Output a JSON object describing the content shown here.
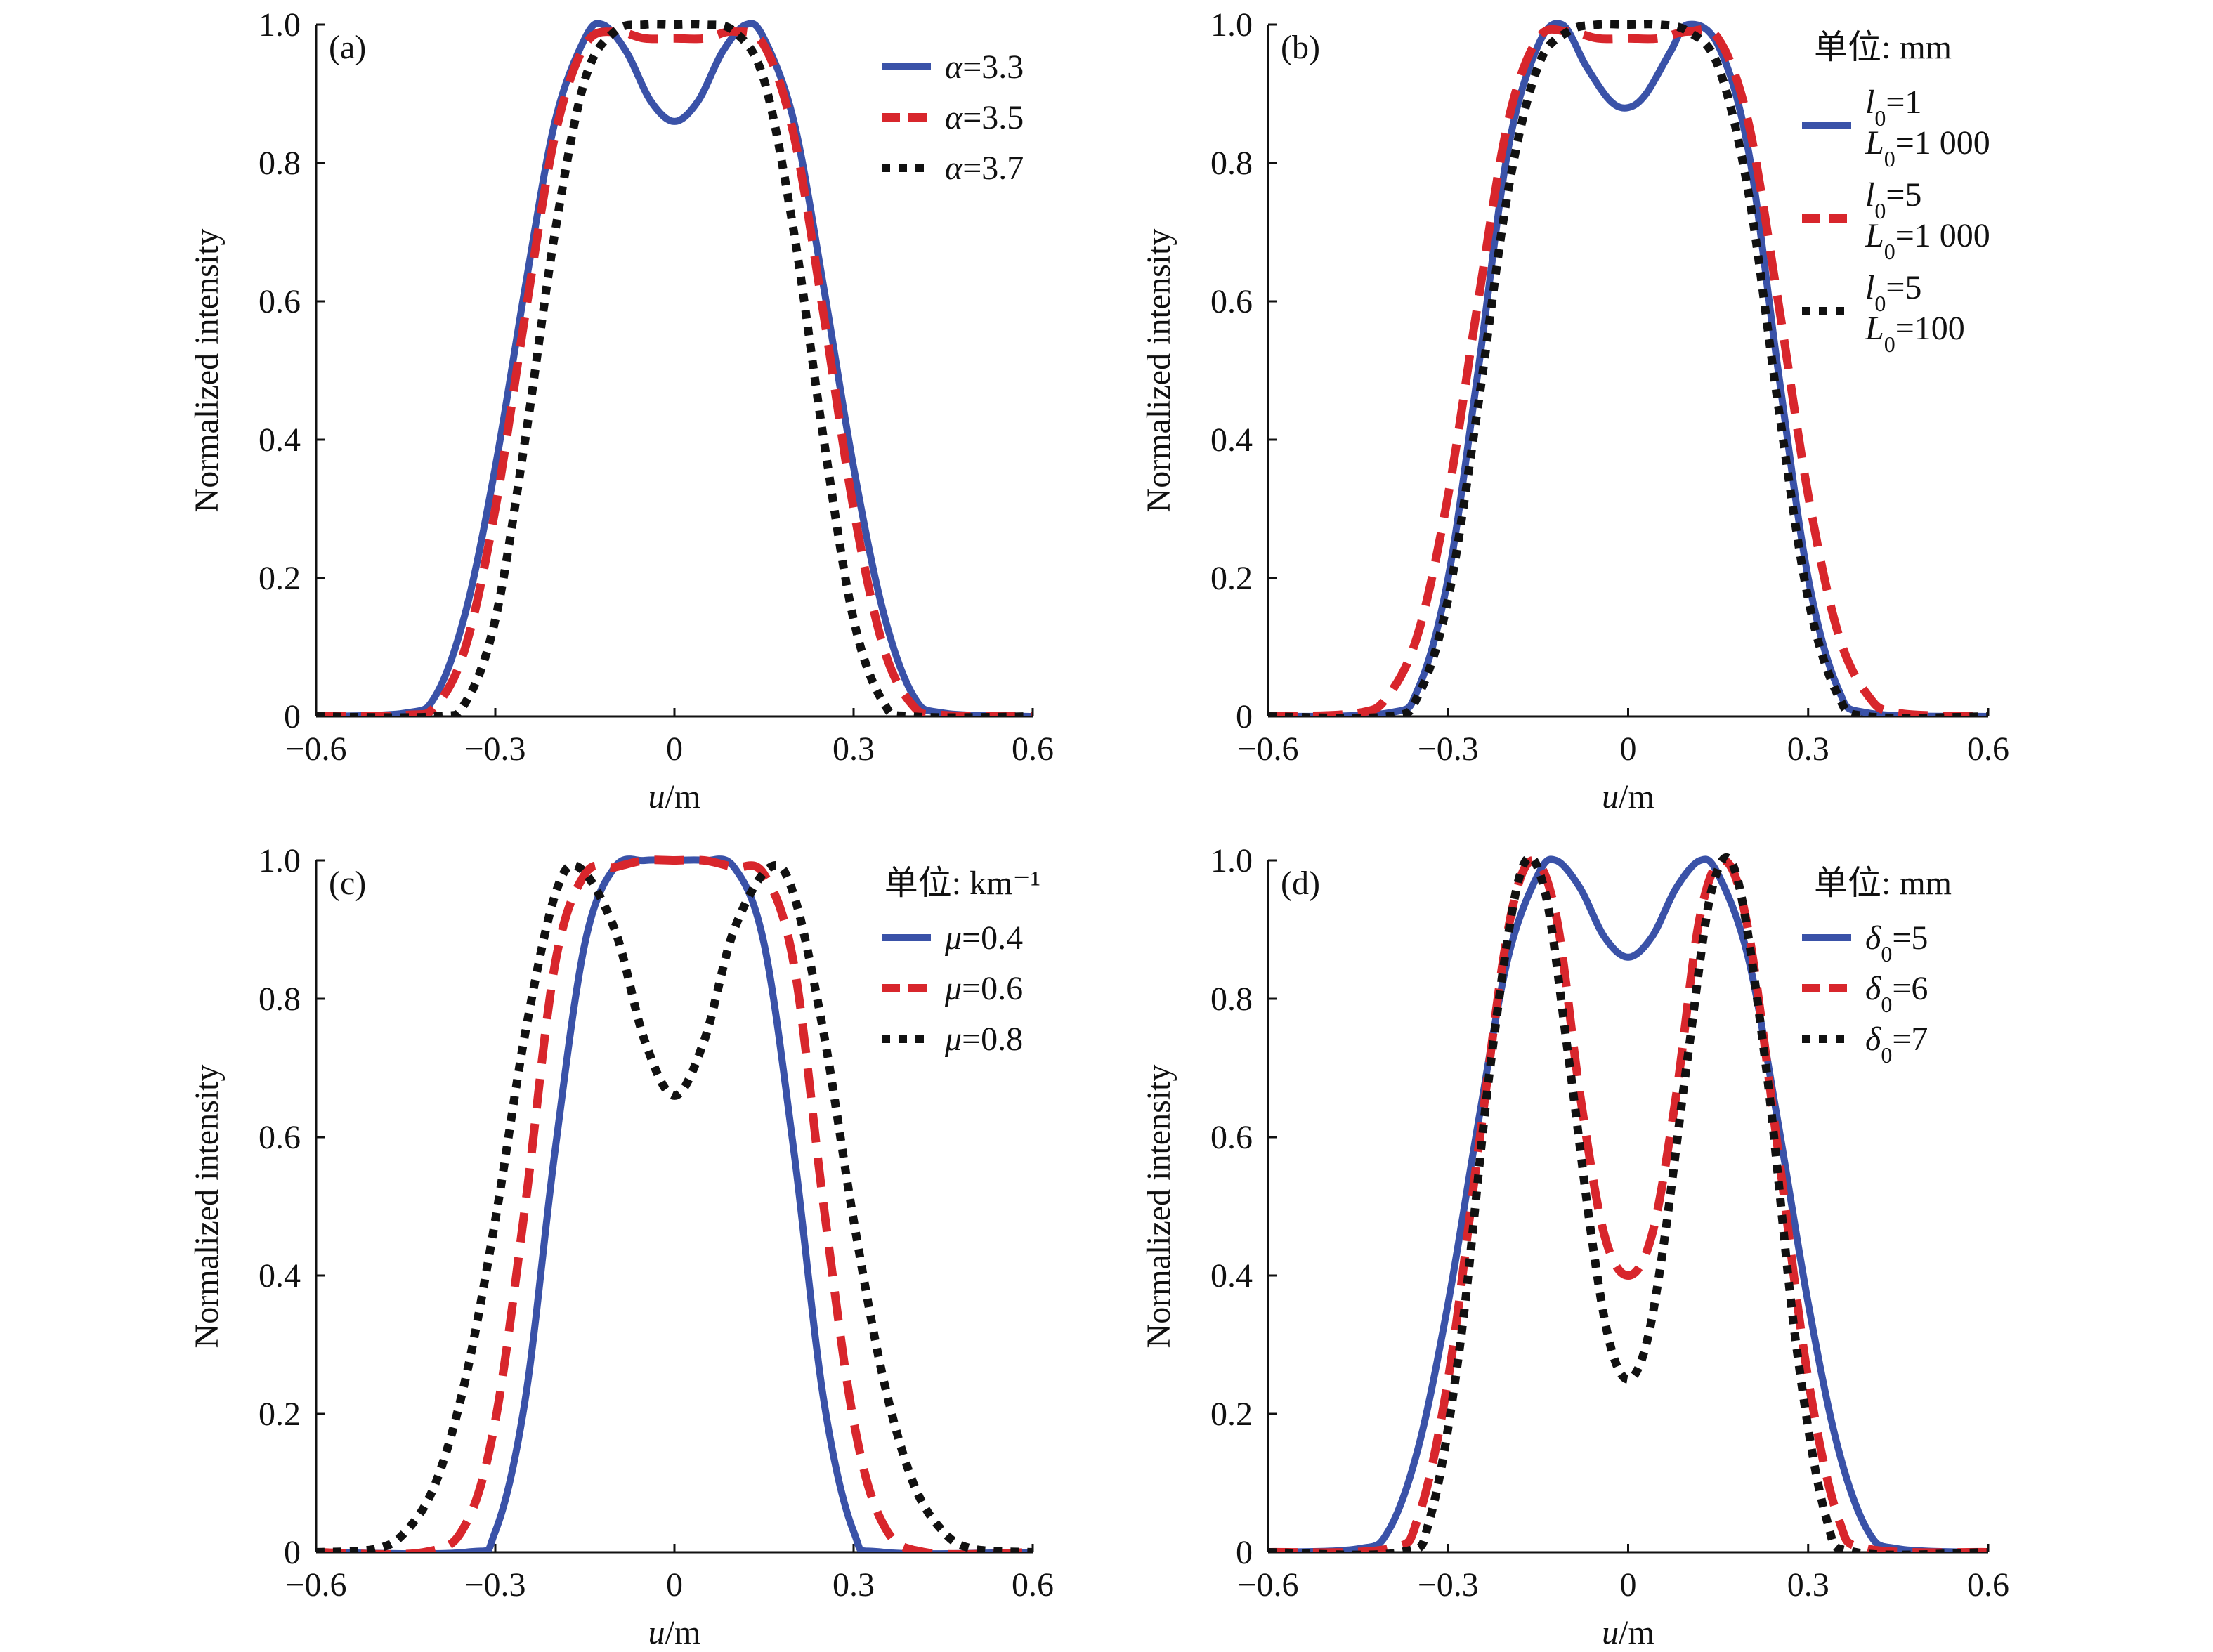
{
  "figure": {
    "x_unit_label": "u/m",
    "y_label": "Normalized intensity"
  },
  "chart_data": [
    {
      "type": "line",
      "panel_label": "(a)",
      "xlabel": "u/m",
      "ylabel": "Normalized intensity",
      "xlim": [
        -0.6,
        0.6
      ],
      "ylim": [
        0,
        1.0
      ],
      "xticks": [
        "−0.6",
        "−0.3",
        "0",
        "0.3",
        "0.6"
      ],
      "yticks": [
        "0",
        "0.2",
        "0.4",
        "0.6",
        "0.8",
        "1.0"
      ],
      "legend_title": "",
      "series": [
        {
          "name": "α=3.3",
          "legend_lines": [
            "α=3.3"
          ],
          "color": "#3a52a8",
          "style": "solid",
          "x": [
            -0.6,
            -0.45,
            -0.4,
            -0.35,
            -0.3,
            -0.25,
            -0.2,
            -0.15,
            -0.12,
            -0.08,
            -0.04,
            0,
            0.04,
            0.08,
            0.12,
            0.15,
            0.2,
            0.25,
            0.3,
            0.35,
            0.4,
            0.45,
            0.6
          ],
          "y": [
            0,
            0.005,
            0.03,
            0.15,
            0.36,
            0.62,
            0.86,
            0.98,
            1.0,
            0.96,
            0.89,
            0.86,
            0.89,
            0.96,
            1.0,
            0.98,
            0.86,
            0.62,
            0.36,
            0.15,
            0.03,
            0.005,
            0
          ]
        },
        {
          "name": "α=3.5",
          "legend_lines": [
            "α=3.5"
          ],
          "color": "#d8262c",
          "style": "dashed",
          "x": [
            -0.6,
            -0.45,
            -0.4,
            -0.35,
            -0.3,
            -0.25,
            -0.2,
            -0.15,
            -0.1,
            -0.05,
            0,
            0.05,
            0.1,
            0.15,
            0.2,
            0.25,
            0.3,
            0.35,
            0.4,
            0.45,
            0.6
          ],
          "y": [
            0,
            0.002,
            0.015,
            0.1,
            0.3,
            0.58,
            0.84,
            0.97,
            0.99,
            0.98,
            0.98,
            0.98,
            0.99,
            0.97,
            0.84,
            0.58,
            0.3,
            0.1,
            0.015,
            0.002,
            0
          ]
        },
        {
          "name": "α=3.7",
          "legend_lines": [
            "α=3.7"
          ],
          "color": "#111111",
          "style": "dotted",
          "x": [
            -0.6,
            -0.4,
            -0.35,
            -0.3,
            -0.25,
            -0.2,
            -0.15,
            -0.1,
            -0.05,
            0,
            0.05,
            0.1,
            0.15,
            0.2,
            0.25,
            0.3,
            0.35,
            0.4,
            0.6
          ],
          "y": [
            0,
            0,
            0.02,
            0.14,
            0.4,
            0.7,
            0.92,
            0.99,
            1.0,
            1.0,
            1.0,
            0.99,
            0.92,
            0.7,
            0.4,
            0.14,
            0.02,
            0,
            0
          ]
        }
      ]
    },
    {
      "type": "line",
      "panel_label": "(b)",
      "xlabel": "u/m",
      "ylabel": "Normalized intensity",
      "xlim": [
        -0.6,
        0.6
      ],
      "ylim": [
        0,
        1.0
      ],
      "xticks": [
        "−0.6",
        "−0.3",
        "0",
        "0.3",
        "0.6"
      ],
      "yticks": [
        "0",
        "0.2",
        "0.4",
        "0.6",
        "0.8",
        "1.0"
      ],
      "legend_title": "单位: mm",
      "series": [
        {
          "name": "l0=1 L0=1 000",
          "legend_lines": [
            "l0=1",
            "L0=1 000"
          ],
          "color": "#3a52a8",
          "style": "solid",
          "x": [
            -0.6,
            -0.4,
            -0.35,
            -0.3,
            -0.25,
            -0.2,
            -0.15,
            -0.11,
            -0.07,
            -0.03,
            0,
            0.03,
            0.07,
            0.1,
            0.15,
            0.2,
            0.25,
            0.3,
            0.35,
            0.4,
            0.6
          ],
          "y": [
            0,
            0.005,
            0.04,
            0.2,
            0.5,
            0.82,
            0.97,
            1.0,
            0.94,
            0.89,
            0.88,
            0.9,
            0.96,
            1.0,
            0.97,
            0.82,
            0.5,
            0.2,
            0.04,
            0.005,
            0
          ]
        },
        {
          "name": "l0=5 L0=1 000",
          "legend_lines": [
            "l0=5",
            "L0=1 000"
          ],
          "color": "#d8262c",
          "style": "dashed",
          "x": [
            -0.6,
            -0.45,
            -0.4,
            -0.35,
            -0.3,
            -0.25,
            -0.2,
            -0.15,
            -0.1,
            -0.05,
            0,
            0.05,
            0.1,
            0.15,
            0.2,
            0.25,
            0.3,
            0.35,
            0.4,
            0.45,
            0.6
          ],
          "y": [
            0,
            0.005,
            0.03,
            0.12,
            0.32,
            0.6,
            0.86,
            0.98,
            0.99,
            0.98,
            0.98,
            0.98,
            0.99,
            0.98,
            0.86,
            0.6,
            0.32,
            0.12,
            0.03,
            0.005,
            0
          ]
        },
        {
          "name": "l0=5 L0=100",
          "legend_lines": [
            "l0=5",
            "L0=100"
          ],
          "color": "#111111",
          "style": "dotted",
          "x": [
            -0.6,
            -0.4,
            -0.35,
            -0.3,
            -0.25,
            -0.2,
            -0.15,
            -0.1,
            -0.05,
            0,
            0.05,
            0.1,
            0.15,
            0.2,
            0.25,
            0.3,
            0.35,
            0.4,
            0.6
          ],
          "y": [
            0,
            0,
            0.03,
            0.17,
            0.45,
            0.76,
            0.94,
            0.99,
            1.0,
            1.0,
            1.0,
            0.99,
            0.94,
            0.76,
            0.45,
            0.17,
            0.03,
            0,
            0
          ]
        }
      ]
    },
    {
      "type": "line",
      "panel_label": "(c)",
      "xlabel": "u/m",
      "ylabel": "Normalized intensity",
      "xlim": [
        -0.6,
        0.6
      ],
      "ylim": [
        0,
        1.0
      ],
      "xticks": [
        "−0.6",
        "−0.3",
        "0",
        "0.3",
        "0.6"
      ],
      "yticks": [
        "0",
        "0.2",
        "0.4",
        "0.6",
        "0.8",
        "1.0"
      ],
      "legend_title": "单位: km⁻¹",
      "series": [
        {
          "name": "μ=0.4",
          "legend_lines": [
            "μ=0.4"
          ],
          "color": "#3a52a8",
          "style": "solid",
          "x": [
            -0.6,
            -0.35,
            -0.3,
            -0.25,
            -0.2,
            -0.15,
            -0.1,
            -0.05,
            0,
            0.05,
            0.1,
            0.15,
            0.2,
            0.25,
            0.3,
            0.35,
            0.6
          ],
          "y": [
            0,
            0,
            0.03,
            0.22,
            0.58,
            0.88,
            0.99,
            1.0,
            1.0,
            1.0,
            0.99,
            0.88,
            0.58,
            0.22,
            0.03,
            0,
            0
          ]
        },
        {
          "name": "μ=0.6",
          "legend_lines": [
            "μ=0.6"
          ],
          "color": "#d8262c",
          "style": "dashed",
          "x": [
            -0.6,
            -0.42,
            -0.35,
            -0.3,
            -0.25,
            -0.2,
            -0.15,
            -0.1,
            -0.05,
            0,
            0.05,
            0.1,
            0.15,
            0.2,
            0.25,
            0.3,
            0.35,
            0.42,
            0.6
          ],
          "y": [
            0,
            0,
            0.04,
            0.19,
            0.5,
            0.85,
            0.98,
            0.99,
            1.0,
            1.0,
            1.0,
            0.99,
            0.98,
            0.85,
            0.5,
            0.19,
            0.04,
            0,
            0
          ]
        },
        {
          "name": "μ=0.8",
          "legend_lines": [
            "μ=0.8"
          ],
          "color": "#111111",
          "style": "dotted",
          "x": [
            -0.6,
            -0.5,
            -0.45,
            -0.4,
            -0.35,
            -0.3,
            -0.25,
            -0.2,
            -0.16,
            -0.1,
            -0.05,
            0,
            0.05,
            0.1,
            0.16,
            0.2,
            0.25,
            0.3,
            0.35,
            0.4,
            0.45,
            0.5,
            0.6
          ],
          "y": [
            0,
            0.005,
            0.03,
            0.1,
            0.25,
            0.48,
            0.75,
            0.95,
            0.99,
            0.9,
            0.74,
            0.66,
            0.74,
            0.9,
            0.99,
            0.95,
            0.75,
            0.48,
            0.25,
            0.1,
            0.03,
            0.005,
            0
          ]
        }
      ]
    },
    {
      "type": "line",
      "panel_label": "(d)",
      "xlabel": "u/m",
      "ylabel": "Normalized intensity",
      "xlim": [
        -0.6,
        0.6
      ],
      "ylim": [
        0,
        1.0
      ],
      "xticks": [
        "−0.6",
        "−0.3",
        "0",
        "0.3",
        "0.6"
      ],
      "yticks": [
        "0",
        "0.2",
        "0.4",
        "0.6",
        "0.8",
        "1.0"
      ],
      "legend_title": "单位: mm",
      "series": [
        {
          "name": "δ0=5",
          "legend_lines": [
            "δ0=5"
          ],
          "color": "#3a52a8",
          "style": "solid",
          "x": [
            -0.6,
            -0.45,
            -0.4,
            -0.35,
            -0.3,
            -0.25,
            -0.2,
            -0.15,
            -0.12,
            -0.08,
            -0.04,
            0,
            0.04,
            0.08,
            0.12,
            0.15,
            0.2,
            0.25,
            0.3,
            0.35,
            0.4,
            0.45,
            0.6
          ],
          "y": [
            0,
            0.005,
            0.03,
            0.15,
            0.36,
            0.62,
            0.86,
            0.98,
            1.0,
            0.96,
            0.89,
            0.86,
            0.89,
            0.96,
            1.0,
            0.98,
            0.86,
            0.62,
            0.36,
            0.15,
            0.03,
            0.005,
            0
          ]
        },
        {
          "name": "δ0=6",
          "legend_lines": [
            "δ0=6"
          ],
          "color": "#d8262c",
          "style": "dashed",
          "x": [
            -0.6,
            -0.4,
            -0.35,
            -0.3,
            -0.25,
            -0.2,
            -0.16,
            -0.12,
            -0.08,
            -0.04,
            0,
            0.04,
            0.08,
            0.12,
            0.16,
            0.2,
            0.25,
            0.3,
            0.35,
            0.4,
            0.6
          ],
          "y": [
            0,
            0.005,
            0.05,
            0.25,
            0.58,
            0.9,
            1.0,
            0.92,
            0.66,
            0.46,
            0.4,
            0.46,
            0.66,
            0.92,
            1.0,
            0.9,
            0.58,
            0.25,
            0.05,
            0.005,
            0
          ]
        },
        {
          "name": "δ0=7",
          "legend_lines": [
            "δ0=7"
          ],
          "color": "#111111",
          "style": "dotted",
          "x": [
            -0.6,
            -0.38,
            -0.33,
            -0.28,
            -0.23,
            -0.18,
            -0.14,
            -0.1,
            -0.06,
            -0.03,
            0,
            0.03,
            0.06,
            0.1,
            0.14,
            0.18,
            0.23,
            0.28,
            0.33,
            0.38,
            0.6
          ],
          "y": [
            0,
            0,
            0.05,
            0.3,
            0.7,
            0.98,
            0.96,
            0.72,
            0.45,
            0.3,
            0.25,
            0.3,
            0.45,
            0.72,
            0.96,
            0.98,
            0.7,
            0.3,
            0.05,
            0,
            0
          ]
        }
      ]
    }
  ]
}
